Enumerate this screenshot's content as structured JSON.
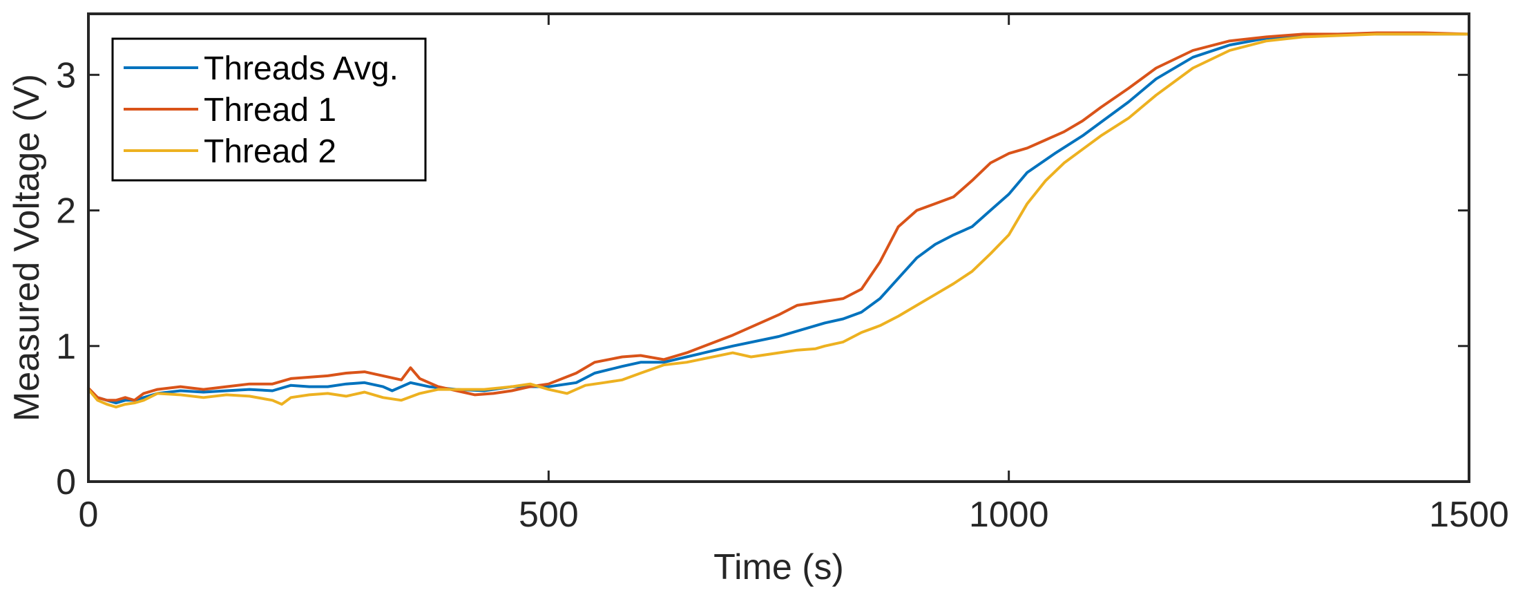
{
  "chart_data": {
    "type": "line",
    "title": "",
    "xlabel": "Time (s)",
    "ylabel": "Measured Voltage (V)",
    "xlim": [
      0,
      1500
    ],
    "ylim": [
      0,
      3.45
    ],
    "x_ticks": [
      0,
      500,
      1000,
      1500
    ],
    "x_tick_labels": [
      "0",
      "500",
      "1000",
      "1500"
    ],
    "y_ticks": [
      0,
      1,
      2,
      3
    ],
    "y_tick_labels": [
      "0",
      "1",
      "2",
      "3"
    ],
    "grid": false,
    "legend_position": "top-left",
    "series": [
      {
        "name": "Threads Avg.",
        "color": "#0072BD",
        "points": [
          [
            0,
            0.68
          ],
          [
            10,
            0.62
          ],
          [
            20,
            0.6
          ],
          [
            30,
            0.58
          ],
          [
            40,
            0.6
          ],
          [
            50,
            0.6
          ],
          [
            60,
            0.62
          ],
          [
            75,
            0.65
          ],
          [
            100,
            0.67
          ],
          [
            125,
            0.66
          ],
          [
            150,
            0.67
          ],
          [
            175,
            0.68
          ],
          [
            200,
            0.67
          ],
          [
            220,
            0.71
          ],
          [
            240,
            0.7
          ],
          [
            260,
            0.7
          ],
          [
            280,
            0.72
          ],
          [
            300,
            0.73
          ],
          [
            320,
            0.7
          ],
          [
            330,
            0.67
          ],
          [
            350,
            0.73
          ],
          [
            370,
            0.7
          ],
          [
            400,
            0.68
          ],
          [
            430,
            0.67
          ],
          [
            460,
            0.7
          ],
          [
            500,
            0.7
          ],
          [
            530,
            0.73
          ],
          [
            550,
            0.8
          ],
          [
            580,
            0.85
          ],
          [
            600,
            0.88
          ],
          [
            625,
            0.88
          ],
          [
            650,
            0.92
          ],
          [
            700,
            1.0
          ],
          [
            750,
            1.07
          ],
          [
            800,
            1.17
          ],
          [
            820,
            1.2
          ],
          [
            840,
            1.25
          ],
          [
            860,
            1.35
          ],
          [
            880,
            1.5
          ],
          [
            900,
            1.65
          ],
          [
            920,
            1.75
          ],
          [
            940,
            1.82
          ],
          [
            960,
            1.88
          ],
          [
            980,
            2.0
          ],
          [
            1000,
            2.12
          ],
          [
            1020,
            2.28
          ],
          [
            1050,
            2.42
          ],
          [
            1080,
            2.55
          ],
          [
            1100,
            2.65
          ],
          [
            1130,
            2.8
          ],
          [
            1160,
            2.97
          ],
          [
            1200,
            3.13
          ],
          [
            1240,
            3.22
          ],
          [
            1280,
            3.27
          ],
          [
            1320,
            3.29
          ],
          [
            1360,
            3.3
          ],
          [
            1400,
            3.3
          ],
          [
            1450,
            3.3
          ],
          [
            1500,
            3.3
          ]
        ]
      },
      {
        "name": "Thread 1",
        "color": "#D95319",
        "points": [
          [
            0,
            0.69
          ],
          [
            10,
            0.62
          ],
          [
            20,
            0.6
          ],
          [
            30,
            0.6
          ],
          [
            40,
            0.62
          ],
          [
            50,
            0.6
          ],
          [
            60,
            0.65
          ],
          [
            75,
            0.68
          ],
          [
            100,
            0.7
          ],
          [
            125,
            0.68
          ],
          [
            150,
            0.7
          ],
          [
            175,
            0.72
          ],
          [
            200,
            0.72
          ],
          [
            220,
            0.76
          ],
          [
            240,
            0.77
          ],
          [
            260,
            0.78
          ],
          [
            280,
            0.8
          ],
          [
            300,
            0.81
          ],
          [
            320,
            0.78
          ],
          [
            340,
            0.75
          ],
          [
            350,
            0.84
          ],
          [
            360,
            0.76
          ],
          [
            380,
            0.7
          ],
          [
            400,
            0.67
          ],
          [
            420,
            0.64
          ],
          [
            440,
            0.65
          ],
          [
            460,
            0.67
          ],
          [
            480,
            0.7
          ],
          [
            500,
            0.72
          ],
          [
            530,
            0.8
          ],
          [
            550,
            0.88
          ],
          [
            580,
            0.92
          ],
          [
            600,
            0.93
          ],
          [
            625,
            0.9
          ],
          [
            650,
            0.95
          ],
          [
            700,
            1.08
          ],
          [
            750,
            1.23
          ],
          [
            770,
            1.3
          ],
          [
            790,
            1.32
          ],
          [
            800,
            1.33
          ],
          [
            820,
            1.35
          ],
          [
            840,
            1.42
          ],
          [
            860,
            1.62
          ],
          [
            880,
            1.88
          ],
          [
            900,
            2.0
          ],
          [
            920,
            2.05
          ],
          [
            940,
            2.1
          ],
          [
            960,
            2.22
          ],
          [
            980,
            2.35
          ],
          [
            1000,
            2.42
          ],
          [
            1020,
            2.46
          ],
          [
            1040,
            2.52
          ],
          [
            1060,
            2.58
          ],
          [
            1080,
            2.66
          ],
          [
            1100,
            2.76
          ],
          [
            1130,
            2.9
          ],
          [
            1160,
            3.05
          ],
          [
            1200,
            3.18
          ],
          [
            1240,
            3.25
          ],
          [
            1280,
            3.28
          ],
          [
            1320,
            3.3
          ],
          [
            1360,
            3.3
          ],
          [
            1400,
            3.31
          ],
          [
            1450,
            3.31
          ],
          [
            1500,
            3.3
          ]
        ]
      },
      {
        "name": "Thread 2",
        "color": "#EDB120",
        "points": [
          [
            0,
            0.68
          ],
          [
            10,
            0.6
          ],
          [
            20,
            0.57
          ],
          [
            30,
            0.55
          ],
          [
            40,
            0.57
          ],
          [
            50,
            0.58
          ],
          [
            60,
            0.6
          ],
          [
            75,
            0.65
          ],
          [
            100,
            0.64
          ],
          [
            125,
            0.62
          ],
          [
            150,
            0.64
          ],
          [
            175,
            0.63
          ],
          [
            200,
            0.6
          ],
          [
            210,
            0.57
          ],
          [
            220,
            0.62
          ],
          [
            240,
            0.64
          ],
          [
            260,
            0.65
          ],
          [
            280,
            0.63
          ],
          [
            300,
            0.66
          ],
          [
            320,
            0.62
          ],
          [
            340,
            0.6
          ],
          [
            360,
            0.65
          ],
          [
            380,
            0.68
          ],
          [
            400,
            0.68
          ],
          [
            430,
            0.68
          ],
          [
            460,
            0.7
          ],
          [
            480,
            0.72
          ],
          [
            500,
            0.68
          ],
          [
            520,
            0.65
          ],
          [
            540,
            0.71
          ],
          [
            560,
            0.73
          ],
          [
            580,
            0.75
          ],
          [
            600,
            0.8
          ],
          [
            625,
            0.86
          ],
          [
            650,
            0.88
          ],
          [
            700,
            0.95
          ],
          [
            720,
            0.92
          ],
          [
            750,
            0.95
          ],
          [
            770,
            0.97
          ],
          [
            790,
            0.98
          ],
          [
            800,
            1.0
          ],
          [
            820,
            1.03
          ],
          [
            840,
            1.1
          ],
          [
            860,
            1.15
          ],
          [
            880,
            1.22
          ],
          [
            900,
            1.3
          ],
          [
            920,
            1.38
          ],
          [
            940,
            1.46
          ],
          [
            960,
            1.55
          ],
          [
            980,
            1.68
          ],
          [
            1000,
            1.82
          ],
          [
            1020,
            2.05
          ],
          [
            1040,
            2.22
          ],
          [
            1060,
            2.35
          ],
          [
            1080,
            2.45
          ],
          [
            1100,
            2.55
          ],
          [
            1130,
            2.68
          ],
          [
            1160,
            2.85
          ],
          [
            1200,
            3.05
          ],
          [
            1240,
            3.18
          ],
          [
            1280,
            3.25
          ],
          [
            1320,
            3.28
          ],
          [
            1360,
            3.29
          ],
          [
            1400,
            3.3
          ],
          [
            1450,
            3.3
          ],
          [
            1500,
            3.3
          ]
        ]
      }
    ]
  }
}
